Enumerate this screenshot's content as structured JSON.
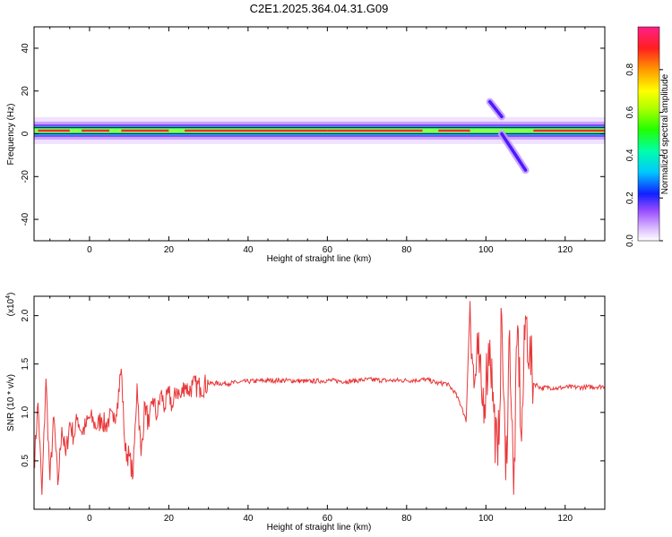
{
  "title": "C2E1.2025.364.04.31.G09",
  "chart_data": [
    {
      "type": "heatmap",
      "xlabel": "Height of straight line (km)",
      "ylabel": "Frequency (Hz)",
      "xlim": [
        -14,
        130
      ],
      "ylim": [
        -50,
        50
      ],
      "xticks": [
        0,
        20,
        40,
        60,
        80,
        100,
        120
      ],
      "yticks": [
        -40,
        -20,
        0,
        20,
        40
      ],
      "colorbar": {
        "label": "Normalized spectral amplitude",
        "range": [
          0,
          1
        ],
        "ticks": [
          "0.0",
          "0.2",
          "0.4",
          "0.6",
          "0.8"
        ]
      },
      "features": {
        "carrier_band_hz": [
          0,
          3
        ],
        "secondary_tracks": [
          {
            "x": [
              101,
              104
            ],
            "y": [
              15,
              8
            ]
          },
          {
            "x": [
              104,
              110
            ],
            "y": [
              0,
              -17
            ]
          }
        ]
      }
    },
    {
      "type": "line",
      "xlabel": "Height of straight line (km)",
      "ylabel": "SNR (10 * v/v)",
      "yscale_note": "(x10",
      "yscale_exp": "4",
      "xlim": [
        -14,
        130
      ],
      "ylim": [
        0.0,
        2.2
      ],
      "xticks": [
        0,
        20,
        40,
        60,
        80,
        100,
        120
      ],
      "yticks": [
        0.5,
        1.0,
        1.5,
        2.0
      ],
      "color": "#e8383a",
      "series": [
        {
          "x": [
            -14,
            -13,
            -12,
            -11,
            -10,
            -9,
            -8,
            -7,
            -6,
            -5,
            -4,
            -3,
            -2,
            -1,
            0,
            1,
            2,
            3,
            4,
            5,
            6,
            7,
            8,
            9,
            10,
            11,
            12,
            13,
            14,
            15,
            16,
            17,
            18,
            19,
            20,
            21,
            22,
            23,
            24,
            25,
            26,
            28,
            30,
            35,
            40,
            45,
            50,
            55,
            60,
            65,
            70,
            75,
            80,
            85,
            88,
            90,
            92,
            94,
            95,
            96,
            97,
            98,
            99,
            100,
            101,
            102,
            103,
            104,
            105,
            106,
            107,
            108,
            109,
            110,
            111,
            112,
            113,
            114,
            116,
            118,
            120,
            125,
            130
          ],
          "y": [
            0.45,
            1.1,
            0.15,
            1.35,
            0.3,
            0.95,
            0.25,
            0.85,
            0.55,
            0.9,
            0.75,
            0.95,
            0.8,
            0.85,
            0.95,
            0.9,
            0.85,
            0.95,
            0.85,
            0.95,
            0.9,
            1.1,
            1.45,
            0.6,
            0.55,
            0.35,
            1.3,
            0.55,
            1.1,
            0.85,
            1.15,
            0.95,
            1.2,
            1.05,
            1.2,
            1.05,
            1.25,
            1.15,
            1.3,
            1.22,
            1.28,
            1.26,
            1.3,
            1.3,
            1.32,
            1.33,
            1.33,
            1.32,
            1.33,
            1.32,
            1.34,
            1.33,
            1.33,
            1.34,
            1.3,
            1.3,
            1.22,
            1.05,
            0.9,
            2.15,
            1.25,
            1.6,
            1.1,
            1.3,
            1.75,
            1.0,
            0.45,
            2.0,
            0.3,
            1.85,
            0.15,
            1.9,
            0.7,
            2.0,
            1.6,
            1.3,
            1.28,
            1.25,
            1.26,
            1.25,
            1.26,
            1.26,
            1.27
          ]
        }
      ]
    }
  ]
}
